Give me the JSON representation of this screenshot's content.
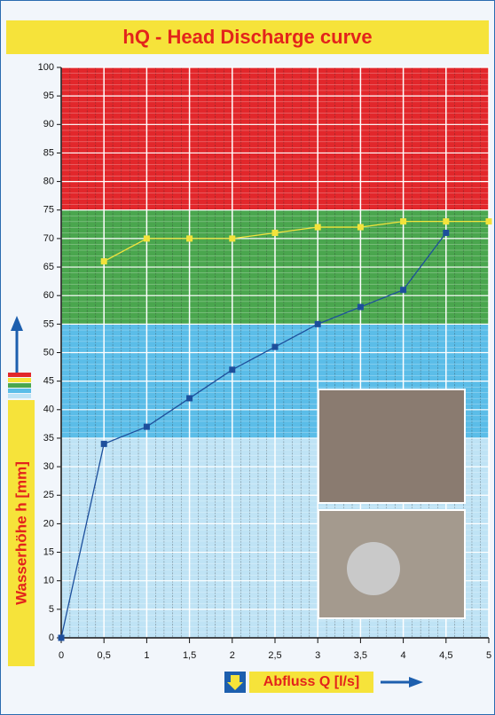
{
  "chart_data": {
    "type": "line",
    "title": "hQ - Head Discharge curve",
    "x_label": "Abfluss Q [l/s]",
    "y_label": "Wasserhöhe h [mm]",
    "xlim": [
      0,
      5
    ],
    "ylim": [
      0,
      100
    ],
    "xticks": [
      0,
      {
        "value": 0.5,
        "label": "0,5"
      },
      1,
      {
        "value": 1.5,
        "label": "1,5"
      },
      2,
      {
        "value": 2.5,
        "label": "2,5"
      },
      3,
      {
        "value": 3.5,
        "label": "3,5"
      },
      4,
      {
        "value": 4.5,
        "label": "4,5"
      },
      5
    ],
    "yticks": [
      0,
      5,
      10,
      15,
      20,
      25,
      30,
      35,
      40,
      45,
      50,
      55,
      60,
      65,
      70,
      75,
      80,
      85,
      90,
      95,
      100
    ],
    "grid": true,
    "bands": [
      {
        "from": 0,
        "to": 35,
        "color": "#bfe3f5"
      },
      {
        "from": 35,
        "to": 55,
        "color": "#5bbde8"
      },
      {
        "from": 55,
        "to": 75,
        "color": "#4aa64e"
      },
      {
        "from": 75,
        "to": 100,
        "color": "#e2272b"
      }
    ],
    "series": [
      {
        "color": "#1d4f9c",
        "x": [
          0,
          0.5,
          1,
          1.5,
          2,
          2.5,
          3,
          3.5,
          4,
          4.5
        ],
        "values": [
          0,
          34,
          37,
          42,
          47,
          51,
          55,
          58,
          61,
          71
        ]
      },
      {
        "color": "#f2e33c",
        "x": [
          0.5,
          1,
          1.5,
          2,
          2.5,
          3,
          3.5,
          4,
          4.5,
          5
        ],
        "values": [
          66,
          70,
          70,
          70,
          71,
          72,
          72,
          73,
          73,
          73
        ]
      }
    ]
  }
}
